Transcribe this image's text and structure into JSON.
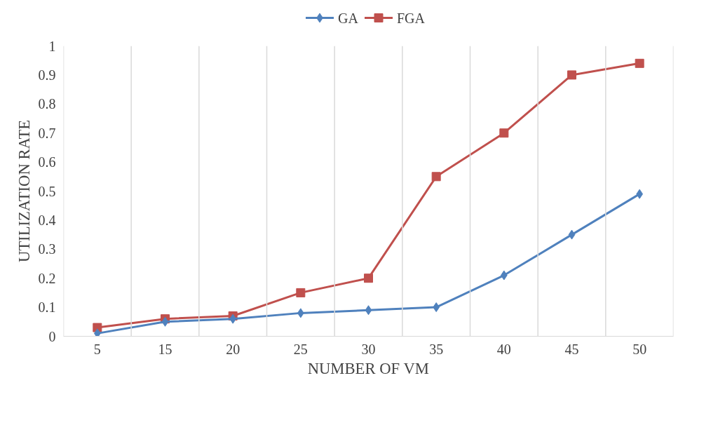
{
  "chart_data": {
    "type": "line",
    "xlabel": "NUMBER OF VM",
    "ylabel": "UTILIZATION RATE",
    "categories": [
      "5",
      "15",
      "20",
      "25",
      "30",
      "35",
      "40",
      "45",
      "50"
    ],
    "series": [
      {
        "name": "GA",
        "color": "#4f81bd",
        "marker": "diamond",
        "values": [
          0.01,
          0.05,
          0.06,
          0.08,
          0.09,
          0.1,
          0.21,
          0.35,
          0.49
        ]
      },
      {
        "name": "FGA",
        "color": "#c0504d",
        "marker": "square",
        "values": [
          0.03,
          0.06,
          0.07,
          0.15,
          0.2,
          0.55,
          0.7,
          0.9,
          0.94
        ]
      }
    ],
    "ylim": [
      0,
      1
    ],
    "yticks": [
      0,
      0.1,
      0.2,
      0.3,
      0.4,
      0.5,
      0.6,
      0.7,
      0.8,
      0.9,
      1
    ],
    "grid": "x",
    "legend": "top",
    "line_style": "solid"
  }
}
